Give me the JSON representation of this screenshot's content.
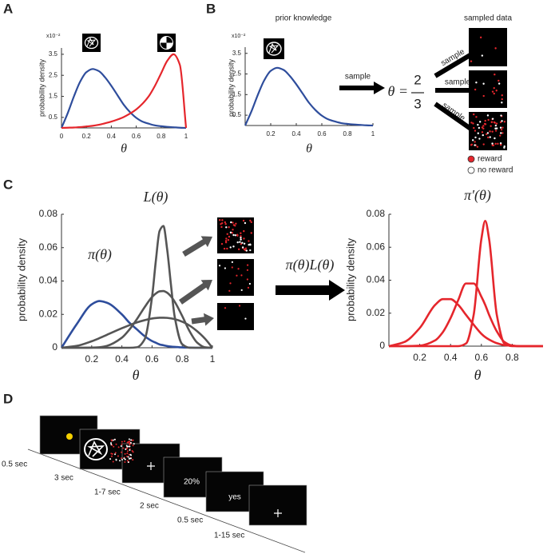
{
  "chart_data": [
    {
      "type": "line",
      "multiplier": "x10⁻²",
      "ylabel": "probability density",
      "xlabel": "θ",
      "xlim": [
        0,
        1
      ],
      "ylim": [
        0,
        3.8
      ],
      "xticks": [
        0,
        0.2,
        0.4,
        0.6,
        0.8,
        1
      ],
      "yticks": [
        0.5,
        1.5,
        2.5,
        3.5
      ],
      "x": [
        0,
        0.05,
        0.1,
        0.15,
        0.2,
        0.25,
        0.3,
        0.35,
        0.4,
        0.45,
        0.5,
        0.55,
        0.6,
        0.65,
        0.7,
        0.75,
        0.8,
        0.85,
        0.9,
        0.95,
        1
      ],
      "series": [
        {
          "color": "#2e4d9c",
          "values": [
            0,
            0.7,
            1.5,
            2.2,
            2.65,
            2.8,
            2.7,
            2.4,
            2.0,
            1.55,
            1.1,
            0.75,
            0.48,
            0.3,
            0.2,
            0.12,
            0.08,
            0.05,
            0.03,
            0.01,
            0
          ]
        },
        {
          "color": "#e5262c",
          "values": [
            0,
            0.01,
            0.02,
            0.04,
            0.07,
            0.1,
            0.15,
            0.22,
            0.3,
            0.4,
            0.52,
            0.68,
            0.88,
            1.15,
            1.5,
            2.0,
            2.6,
            3.2,
            3.5,
            3.0,
            0
          ]
        }
      ]
    },
    {
      "type": "line",
      "multiplier": "x10⁻²",
      "ylabel": "probability density",
      "xlabel": "θ",
      "xlim": [
        0,
        1
      ],
      "ylim": [
        0,
        3.8
      ],
      "xticks": [
        0.2,
        0.4,
        0.6,
        0.8,
        1
      ],
      "yticks": [
        0.5,
        1.5,
        2.5,
        3.5
      ],
      "x": [
        0,
        0.05,
        0.1,
        0.15,
        0.2,
        0.25,
        0.3,
        0.35,
        0.4,
        0.45,
        0.5,
        0.55,
        0.6,
        0.65,
        0.7,
        0.75,
        0.8,
        0.85,
        0.9,
        0.95,
        1
      ],
      "series": [
        {
          "color": "#2e4d9c",
          "values": [
            0,
            0.7,
            1.5,
            2.2,
            2.65,
            2.8,
            2.7,
            2.4,
            2.0,
            1.55,
            1.1,
            0.75,
            0.48,
            0.3,
            0.2,
            0.12,
            0.08,
            0.05,
            0.03,
            0.01,
            0
          ]
        }
      ]
    },
    {
      "type": "line",
      "ylabel": "probability density",
      "xlabel": "θ",
      "annotations": [
        "π(θ)",
        "L(θ)"
      ],
      "xlim": [
        0,
        1
      ],
      "ylim": [
        0,
        0.08
      ],
      "xticks": [
        0.2,
        0.4,
        0.6,
        0.8,
        1
      ],
      "yticks": [
        0,
        0.02,
        0.04,
        0.06,
        0.08
      ],
      "x": [
        0,
        0.1,
        0.2,
        0.25,
        0.3,
        0.4,
        0.45,
        0.5,
        0.55,
        0.6,
        0.625,
        0.65,
        0.675,
        0.7,
        0.725,
        0.75,
        0.8,
        0.85,
        0.9,
        0.95,
        1
      ],
      "series": [
        {
          "color": "#2e4d9c",
          "values": [
            0,
            0.014,
            0.026,
            0.028,
            0.027,
            0.02,
            0.015,
            0.011,
            0.007,
            0.004,
            0.003,
            0.002,
            0.0015,
            0.001,
            0.0007,
            0.0005,
            0.0002,
            0.0001,
            0,
            0,
            0
          ]
        },
        {
          "color": "#555555",
          "values": [
            0,
            0.0011,
            0.0039,
            0.0057,
            0.0077,
            0.0117,
            0.0135,
            0.0152,
            0.0165,
            0.0175,
            0.0178,
            0.018,
            0.018,
            0.0179,
            0.0176,
            0.0171,
            0.0156,
            0.0132,
            0.0098,
            0.0055,
            0
          ]
        },
        {
          "color": "#555555",
          "values": [
            0,
            0,
            0.0001,
            0.0003,
            0.0011,
            0.006,
            0.0109,
            0.0172,
            0.0242,
            0.0304,
            0.0325,
            0.0338,
            0.034,
            0.033,
            0.0308,
            0.0276,
            0.019,
            0.0097,
            0.003,
            0.0003,
            0
          ]
        },
        {
          "color": "#555555",
          "values": [
            0,
            0,
            0,
            0,
            0,
            0,
            0,
            0.0003,
            0.0049,
            0.0304,
            0.052,
            0.07,
            0.073,
            0.059,
            0.038,
            0.0186,
            0.0021,
            0,
            0,
            0,
            0
          ]
        }
      ]
    },
    {
      "type": "line",
      "ylabel": "probability density",
      "xlabel": "θ",
      "annotations": [
        "π′(θ)"
      ],
      "xlim": [
        0,
        1
      ],
      "ylim": [
        0,
        0.08
      ],
      "xticks": [
        0.2,
        0.4,
        0.6,
        0.8
      ],
      "yticks": [
        0,
        0.02,
        0.04,
        0.06,
        0.08
      ],
      "x": [
        0,
        0.1,
        0.2,
        0.3,
        0.35,
        0.4,
        0.45,
        0.5,
        0.55,
        0.6,
        0.625,
        0.65,
        0.7,
        0.75,
        0.8,
        0.85,
        0.9,
        1
      ],
      "series": [
        {
          "color": "#e5262c",
          "values": [
            0,
            0.0025,
            0.011,
            0.025,
            0.0285,
            0.0285,
            0.025,
            0.019,
            0.013,
            0.0075,
            0.0055,
            0.004,
            0.0018,
            0.0006,
            0.0002,
            0,
            0,
            0
          ]
        },
        {
          "color": "#e5262c",
          "values": [
            0,
            0,
            0.0003,
            0.0035,
            0.0085,
            0.017,
            0.028,
            0.038,
            0.038,
            0.03,
            0.025,
            0.019,
            0.009,
            0.0025,
            0.0004,
            0,
            0,
            0
          ]
        },
        {
          "color": "#e5262c",
          "values": [
            0,
            0,
            0,
            0,
            0,
            0,
            0,
            0.0016,
            0.019,
            0.065,
            0.076,
            0.065,
            0.019,
            0.0016,
            0,
            0,
            0,
            0
          ]
        }
      ]
    }
  ],
  "panel_labels": [
    "A",
    "B",
    "C",
    "D"
  ],
  "panel_b": {
    "prior_title": "prior knowledge",
    "data_title": "sampled data",
    "sample_labels": [
      "sample",
      "sample",
      "sample",
      "sample"
    ],
    "equation": {
      "lhs": "θ =",
      "numerator": "2",
      "denominator": "3"
    },
    "legend": [
      "reward",
      "no reward"
    ]
  },
  "panel_c": {
    "product_label": "π(θ)L(θ)"
  },
  "panel_d": {
    "durations": [
      "0.5 sec",
      "3 sec",
      "1-7 sec",
      "2 sec",
      "0.5 sec",
      "1-15 sec"
    ],
    "screen_texts": [
      "20%",
      "yes"
    ]
  }
}
